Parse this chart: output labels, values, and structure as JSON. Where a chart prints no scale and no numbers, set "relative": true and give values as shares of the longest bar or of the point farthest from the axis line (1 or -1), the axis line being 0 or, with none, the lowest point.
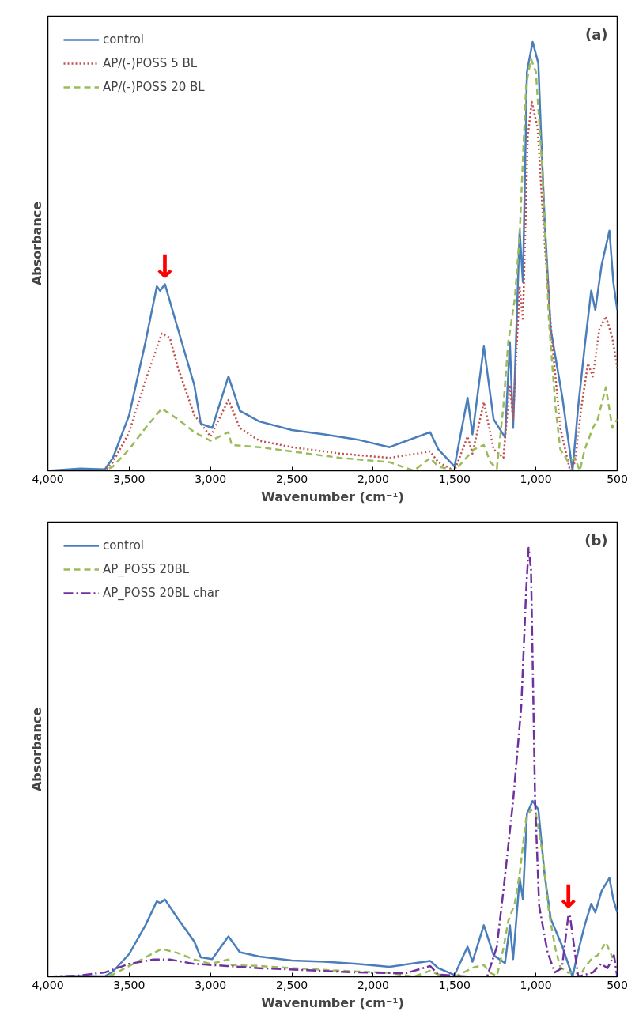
{
  "chart_data": [
    {
      "type": "line",
      "relative": true,
      "xlabel": "Wavenumber (cm⁻¹)",
      "ylabel": "Absorbance",
      "xlim": [
        4000,
        500
      ],
      "xticks": [
        {
          "value": 4000,
          "label": "4,000"
        },
        {
          "value": 3500,
          "label": "3,500"
        },
        {
          "value": 3000,
          "label": "3,000"
        },
        {
          "value": 2500,
          "label": "2,500"
        },
        {
          "value": 2000,
          "label": "2,000"
        },
        {
          "value": 1500,
          "label": "1,500"
        },
        {
          "value": 1000,
          "label": "1,000"
        },
        500
      ],
      "tick_labels": "x",
      "grid": false,
      "legend": "top left",
      "marker": "none",
      "annotations": [
        "(a)",
        {
          "text": "↓",
          "x": 3280,
          "y": 0.435
        }
      ],
      "series": [
        {
          "name": "control",
          "color": "#4a7ebb",
          "line_style": "solid",
          "x": [
            4000,
            3800,
            3650,
            3600,
            3500,
            3400,
            3330,
            3310,
            3280,
            3200,
            3100,
            3060,
            2990,
            2890,
            2820,
            2700,
            2500,
            2300,
            2100,
            1900,
            1650,
            1600,
            1500,
            1420,
            1390,
            1320,
            1260,
            1190,
            1160,
            1140,
            1100,
            1080,
            1055,
            1020,
            985,
            970,
            947,
            909,
            837,
            775,
            740,
            700,
            660,
            635,
            596,
            548,
            524,
            500
          ],
          "values": [
            0,
            0.005,
            0.003,
            0.03,
            0.13,
            0.3,
            0.43,
            0.42,
            0.435,
            0.33,
            0.2,
            0.11,
            0.1,
            0.22,
            0.14,
            0.115,
            0.095,
            0.085,
            0.073,
            0.055,
            0.09,
            0.05,
            0.01,
            0.17,
            0.085,
            0.29,
            0.12,
            0.078,
            0.3,
            0.1,
            0.56,
            0.44,
            0.93,
            1.0,
            0.95,
            0.8,
            0.59,
            0.33,
            0.17,
            0.0,
            0.15,
            0.29,
            0.42,
            0.375,
            0.48,
            0.56,
            0.44,
            0.375
          ]
        },
        {
          "name": "AP/(-)POSS 5 BL",
          "color": "#c0504d",
          "line_style": "dotted",
          "x": [
            4000,
            3650,
            3600,
            3500,
            3400,
            3300,
            3250,
            3200,
            3100,
            3000,
            2890,
            2820,
            2700,
            2500,
            2200,
            1900,
            1650,
            1600,
            1500,
            1420,
            1390,
            1320,
            1260,
            1200,
            1160,
            1140,
            1100,
            1080,
            1050,
            1025,
            990,
            950,
            900,
            850,
            790,
            760,
            720,
            680,
            650,
            610,
            570,
            530,
            500
          ],
          "values": [
            0,
            0,
            0.02,
            0.09,
            0.21,
            0.32,
            0.31,
            0.24,
            0.13,
            0.08,
            0.165,
            0.1,
            0.07,
            0.055,
            0.04,
            0.03,
            0.045,
            0.02,
            0,
            0.08,
            0.04,
            0.16,
            0.05,
            0.03,
            0.2,
            0.12,
            0.43,
            0.35,
            0.78,
            0.86,
            0.8,
            0.55,
            0.3,
            0.1,
            0,
            0.02,
            0.15,
            0.25,
            0.22,
            0.33,
            0.36,
            0.31,
            0.24
          ]
        },
        {
          "name": "AP/(-)POSS 20 BL",
          "color": "#9bbb59",
          "line_style": "dashed",
          "x": [
            4000,
            3650,
            3600,
            3500,
            3400,
            3300,
            3200,
            3100,
            3000,
            2890,
            2870,
            2700,
            2500,
            2200,
            1900,
            1750,
            1650,
            1600,
            1500,
            1380,
            1320,
            1280,
            1240,
            1200,
            1170,
            1130,
            1100,
            1060,
            1030,
            1000,
            960,
            920,
            880,
            850,
            800,
            760,
            730,
            700,
            650,
            620,
            570,
            530,
            500
          ],
          "values": [
            0,
            0,
            0.01,
            0.05,
            0.1,
            0.145,
            0.12,
            0.09,
            0.07,
            0.09,
            0.06,
            0.055,
            0.045,
            0.03,
            0.02,
            0,
            0.03,
            0.01,
            0,
            0.05,
            0.06,
            0.02,
            0.005,
            0.15,
            0.3,
            0.4,
            0.55,
            0.9,
            0.96,
            0.93,
            0.7,
            0.35,
            0.15,
            0.05,
            0.02,
            0.03,
            0,
            0.05,
            0.1,
            0.12,
            0.195,
            0.1,
            0.12
          ]
        }
      ]
    },
    {
      "type": "line",
      "relative": true,
      "xlabel": "Wavenumber (cm⁻¹)",
      "ylabel": "Absorbance",
      "xlim": [
        4000,
        500
      ],
      "xticks": [
        {
          "value": 4000,
          "label": "4,000"
        },
        {
          "value": 3500,
          "label": "3,500"
        },
        {
          "value": 3000,
          "label": "3,000"
        },
        {
          "value": 2500,
          "label": "2,500"
        },
        {
          "value": 2000,
          "label": "2,000"
        },
        {
          "value": 1500,
          "label": "1,500"
        },
        {
          "value": 1000,
          "label": "1,000"
        },
        500
      ],
      "tick_labels": "x",
      "grid": false,
      "legend": "top left",
      "marker": "none",
      "annotations": [
        "(b)",
        {
          "text": "↓",
          "x": 800,
          "y": 0.145
        }
      ],
      "series": [
        {
          "name": "control",
          "color": "#4a7ebb",
          "line_style": "solid",
          "x": [
            4000,
            3800,
            3650,
            3600,
            3500,
            3400,
            3330,
            3310,
            3280,
            3200,
            3100,
            3060,
            2990,
            2890,
            2820,
            2700,
            2500,
            2300,
            2100,
            1900,
            1650,
            1600,
            1500,
            1420,
            1390,
            1320,
            1260,
            1190,
            1160,
            1140,
            1100,
            1080,
            1055,
            1020,
            985,
            970,
            947,
            909,
            837,
            775,
            740,
            700,
            660,
            635,
            596,
            548,
            524,
            500
          ],
          "values": [
            0,
            0.002,
            0.001,
            0.012,
            0.053,
            0.12,
            0.176,
            0.172,
            0.18,
            0.135,
            0.082,
            0.045,
            0.041,
            0.094,
            0.057,
            0.047,
            0.038,
            0.035,
            0.03,
            0.023,
            0.037,
            0.02,
            0.004,
            0.07,
            0.035,
            0.12,
            0.05,
            0.032,
            0.12,
            0.041,
            0.23,
            0.18,
            0.38,
            0.41,
            0.39,
            0.33,
            0.24,
            0.135,
            0.07,
            0.0,
            0.06,
            0.12,
            0.17,
            0.15,
            0.2,
            0.23,
            0.18,
            0.15
          ]
        },
        {
          "name": "AP_POSS 20BL",
          "color": "#9bbb59",
          "line_style": "dashed",
          "x": [
            4000,
            3650,
            3600,
            3500,
            3400,
            3300,
            3200,
            3100,
            3000,
            2890,
            2870,
            2700,
            2500,
            2200,
            1900,
            1750,
            1650,
            1600,
            1500,
            1380,
            1320,
            1280,
            1240,
            1200,
            1170,
            1130,
            1100,
            1060,
            1030,
            1000,
            960,
            920,
            880,
            850,
            800,
            760,
            730,
            700,
            650,
            620,
            570,
            530,
            500
          ],
          "values": [
            0,
            0,
            0.005,
            0.025,
            0.045,
            0.065,
            0.055,
            0.04,
            0.03,
            0.04,
            0.027,
            0.025,
            0.02,
            0.014,
            0.009,
            0,
            0.014,
            0.005,
            0,
            0.022,
            0.027,
            0.009,
            0.002,
            0.065,
            0.13,
            0.17,
            0.24,
            0.37,
            0.39,
            0.38,
            0.29,
            0.15,
            0.065,
            0.022,
            0.009,
            0.013,
            0,
            0.022,
            0.045,
            0.05,
            0.08,
            0.045,
            0.05
          ]
        },
        {
          "name": "AP_POSS 20BL char",
          "color": "#7030a0",
          "line_style": "dashdot",
          "x": [
            4000,
            3800,
            3650,
            3500,
            3350,
            3250,
            3100,
            2900,
            2700,
            2400,
            2100,
            1800,
            1650,
            1600,
            1400,
            1300,
            1240,
            1200,
            1140,
            1090,
            1060,
            1045,
            1030,
            1005,
            980,
            930,
            885,
            840,
            800,
            790,
            740,
            650,
            600,
            560,
            520,
            500
          ],
          "values": [
            0,
            0.003,
            0.01,
            0.03,
            0.04,
            0.04,
            0.03,
            0.025,
            0.02,
            0.015,
            0.01,
            0.008,
            0.025,
            0.005,
            0,
            0,
            0.07,
            0.2,
            0.41,
            0.63,
            0.9,
            1.0,
            0.95,
            0.41,
            0.165,
            0.06,
            0.01,
            0.02,
            0.145,
            0.14,
            0,
            0.01,
            0.03,
            0.02,
            0.05,
            0
          ]
        }
      ]
    }
  ]
}
